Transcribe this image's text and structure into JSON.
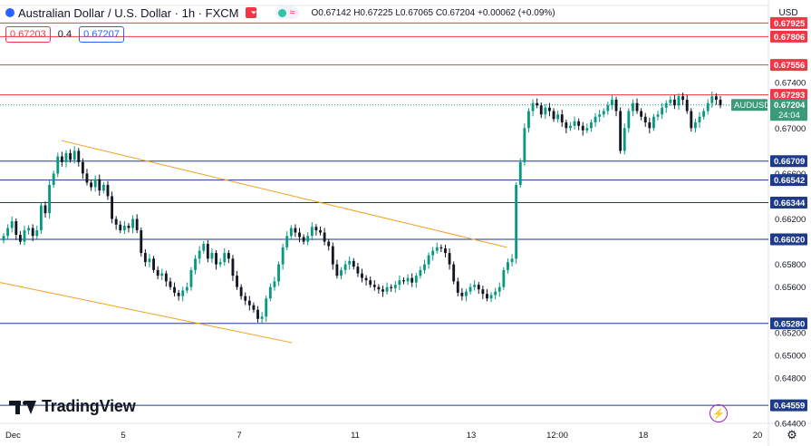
{
  "header": {
    "title": "Australian Dollar / U.S. Dollar · 1h · FXCM",
    "ohlc_label": "O0.67142 H0.67225 L0.67065 C0.67204 +0.00062 (+0.09%)",
    "bid": "0.67203",
    "spread": "0.4",
    "ask": "0.67207",
    "currency": "USD",
    "countdown": "24:04",
    "symbol": "AUDUSD",
    "brand": "TradingView"
  },
  "colors": {
    "up": "#089981",
    "down": "#131722",
    "resistance": "#f23645",
    "support": "#1e3a8a",
    "channel": "#f0a020",
    "last_price_bg": "#3a9a7a"
  },
  "chart_data": {
    "type": "candlestick",
    "symbol": "AUDUSD",
    "interval": "1h",
    "ylim": [
      0.644,
      0.6808
    ],
    "y_ticks": [
      0.674,
      0.67,
      0.666,
      0.662,
      0.658,
      0.656,
      0.652,
      0.65,
      0.648,
      0.644
    ],
    "y_tick_labels": [
      "0.67400",
      "0.67000",
      "0.66600",
      "0.66200",
      "0.65800",
      "0.65600",
      "0.65200",
      "0.65000",
      "0.64800",
      "0.64400"
    ],
    "x_tick_labels": [
      "Dec",
      "5",
      "7",
      "11",
      "13",
      "12:00",
      "18",
      "20"
    ],
    "horizontal_levels": [
      {
        "label": "0.67925",
        "value": 0.67925,
        "kind": "resistance"
      },
      {
        "label": "0.67806",
        "value": 0.67806,
        "kind": "resistance"
      },
      {
        "label": "0.67556",
        "value": 0.67556,
        "kind": "resistance"
      },
      {
        "label": "0.67293",
        "value": 0.67293,
        "kind": "resistance"
      },
      {
        "label": "0.66709",
        "value": 0.66709,
        "kind": "support"
      },
      {
        "label": "0.66542",
        "value": 0.66542,
        "kind": "support"
      },
      {
        "label": "0.66344",
        "value": 0.66344,
        "kind": "support"
      },
      {
        "label": "0.66020",
        "value": 0.6602,
        "kind": "support"
      },
      {
        "label": "0.65280",
        "value": 0.6528,
        "kind": "support"
      },
      {
        "label": "0.64559",
        "value": 0.64559,
        "kind": "support"
      }
    ],
    "last_price": {
      "label": "0.67204",
      "value": 0.67204
    },
    "channel_lines": [
      {
        "from": [
          0.08,
          0.6689
        ],
        "to": [
          0.66,
          0.6595
        ]
      },
      {
        "from": [
          0.0,
          0.6564
        ],
        "to": [
          0.38,
          0.6511
        ]
      }
    ],
    "closes": [
      0.6605,
      0.6612,
      0.6618,
      0.6606,
      0.66,
      0.661,
      0.6612,
      0.6605,
      0.661,
      0.6632,
      0.6625,
      0.665,
      0.666,
      0.6675,
      0.667,
      0.6678,
      0.6672,
      0.668,
      0.667,
      0.666,
      0.6652,
      0.6648,
      0.6655,
      0.6645,
      0.665,
      0.664,
      0.662,
      0.6615,
      0.661,
      0.6614,
      0.6612,
      0.662,
      0.661,
      0.659,
      0.6582,
      0.6585,
      0.6575,
      0.657,
      0.6572,
      0.6565,
      0.656,
      0.6555,
      0.6552,
      0.6557,
      0.656,
      0.6575,
      0.6585,
      0.6592,
      0.6598,
      0.6585,
      0.659,
      0.658,
      0.6582,
      0.659,
      0.6585,
      0.657,
      0.656,
      0.6552,
      0.6548,
      0.6544,
      0.654,
      0.6532,
      0.6534,
      0.655,
      0.656,
      0.6565,
      0.658,
      0.6595,
      0.6605,
      0.6612,
      0.6608,
      0.6604,
      0.66,
      0.6605,
      0.6613,
      0.661,
      0.6608,
      0.66,
      0.6596,
      0.658,
      0.657,
      0.6575,
      0.658,
      0.6583,
      0.6578,
      0.6572,
      0.6568,
      0.6566,
      0.6562,
      0.656,
      0.6558,
      0.6556,
      0.656,
      0.6559,
      0.6562,
      0.6566,
      0.6565,
      0.6568,
      0.6564,
      0.657,
      0.6575,
      0.658,
      0.6588,
      0.6592,
      0.6595,
      0.6594,
      0.659,
      0.658,
      0.6565,
      0.6555,
      0.6552,
      0.6556,
      0.656,
      0.6562,
      0.6558,
      0.6554,
      0.655,
      0.6553,
      0.6556,
      0.656,
      0.6575,
      0.6582,
      0.6585,
      0.665,
      0.667,
      0.67,
      0.6715,
      0.6722,
      0.672,
      0.6712,
      0.6718,
      0.6715,
      0.6708,
      0.6712,
      0.6705,
      0.67,
      0.6702,
      0.6706,
      0.6702,
      0.6698,
      0.67,
      0.6705,
      0.671,
      0.6712,
      0.6715,
      0.672,
      0.6725,
      0.6715,
      0.668,
      0.67,
      0.6715,
      0.6722,
      0.6715,
      0.671,
      0.6705,
      0.67,
      0.671,
      0.6712,
      0.6718,
      0.6722,
      0.6725,
      0.672,
      0.6728,
      0.6725,
      0.6715,
      0.67,
      0.6705,
      0.671,
      0.6715,
      0.6722,
      0.6728,
      0.6725,
      0.672
    ]
  }
}
